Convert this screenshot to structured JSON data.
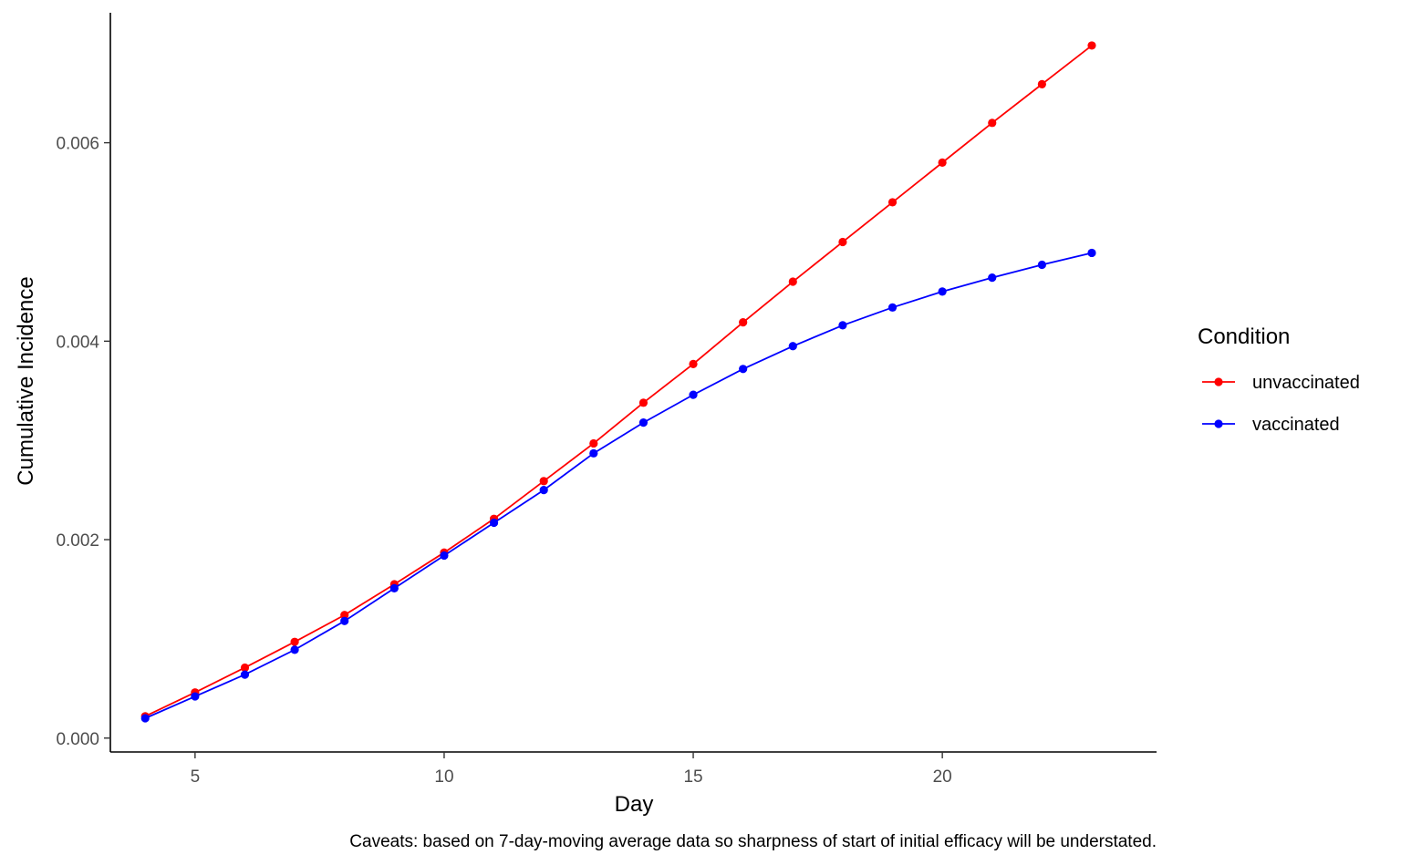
{
  "chart_data": {
    "type": "line",
    "xlabel": "Day",
    "ylabel": "Cumulative Incidence",
    "caption": "Caveats: based on 7-day-moving average data so sharpness of start of initial efficacy will be understated.",
    "xlim": [
      3.3,
      24.3
    ],
    "ylim": [
      -0.00014,
      0.00731
    ],
    "x_ticks": [
      5,
      10,
      15,
      20
    ],
    "y_ticks": [
      0.0,
      0.002,
      0.004,
      0.006
    ],
    "y_tick_labels": [
      "0.000",
      "0.002",
      "0.004",
      "0.006"
    ],
    "grid": false,
    "legend": {
      "title": "Condition",
      "position": "right"
    },
    "x": [
      4,
      5,
      6,
      7,
      8,
      9,
      10,
      11,
      12,
      13,
      14,
      15,
      16,
      17,
      18,
      19,
      20,
      21,
      22,
      23
    ],
    "series": [
      {
        "name": "unvaccinated",
        "color": "#ff0000",
        "values": [
          0.00022,
          0.00046,
          0.00071,
          0.00097,
          0.00124,
          0.00155,
          0.00187,
          0.00221,
          0.00259,
          0.00297,
          0.00338,
          0.00377,
          0.00419,
          0.0046,
          0.005,
          0.0054,
          0.0058,
          0.0062,
          0.00659,
          0.00698
        ]
      },
      {
        "name": "vaccinated",
        "color": "#0000ff",
        "values": [
          0.0002,
          0.00042,
          0.00064,
          0.00089,
          0.00118,
          0.00151,
          0.00184,
          0.00217,
          0.0025,
          0.00287,
          0.00318,
          0.00346,
          0.00372,
          0.00395,
          0.00416,
          0.00434,
          0.0045,
          0.00464,
          0.00477,
          0.00489
        ]
      }
    ]
  }
}
